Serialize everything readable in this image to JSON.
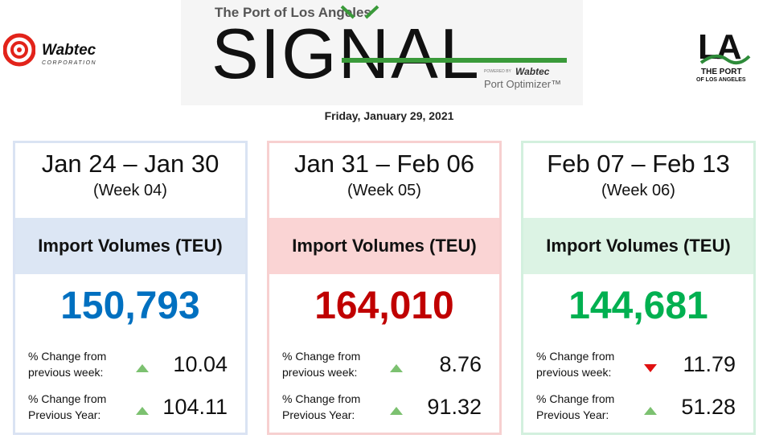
{
  "header": {
    "brand_left": "Wabtec",
    "brand_left_sub": "CORPORATION",
    "kicker": "The Port of Los Angeles",
    "title": "SIGNAL",
    "powered": "POWERED BY",
    "powered_brand": "Wabtec",
    "product": "Port Optimizer™",
    "brand_right": "LA",
    "brand_right_sub_1": "THE PORT",
    "brand_right_sub_2": "OF LOS ANGELES"
  },
  "date": "Friday, January 29, 2021",
  "cards": [
    {
      "range": "Jan 24 – Jan 30",
      "week": "(Week 04)",
      "metric": "Import Volumes (TEU)",
      "value": "150,793",
      "accent": "#0070c0",
      "panel": "#dce6f4",
      "border": "#dae3f3",
      "rows": [
        {
          "label_1": "% Change from",
          "label_2": "previous week:",
          "direction": "up",
          "value": "10.04"
        },
        {
          "label_1": "% Change from",
          "label_2": "Previous Year:",
          "direction": "up",
          "value": "104.11"
        }
      ]
    },
    {
      "range": "Jan 31 – Feb 06",
      "week": "(Week 05)",
      "metric": "Import Volumes (TEU)",
      "value": "164,010",
      "accent": "#c00000",
      "panel": "#fad4d4",
      "border": "#f7d0d0",
      "rows": [
        {
          "label_1": "% Change from",
          "label_2": "previous week:",
          "direction": "up",
          "value": "8.76"
        },
        {
          "label_1": "% Change from",
          "label_2": "Previous Year:",
          "direction": "up",
          "value": "91.32"
        }
      ]
    },
    {
      "range": "Feb 07 – Feb 13",
      "week": "(Week 06)",
      "metric": "Import Volumes (TEU)",
      "value": "144,681",
      "accent": "#00b050",
      "panel": "#dcf3e4",
      "border": "#d3f0de",
      "rows": [
        {
          "label_1": "% Change from",
          "label_2": "previous week:",
          "direction": "down",
          "value": "11.79"
        },
        {
          "label_1": "% Change from",
          "label_2": "Previous Year:",
          "direction": "up",
          "value": "51.28"
        }
      ]
    }
  ]
}
